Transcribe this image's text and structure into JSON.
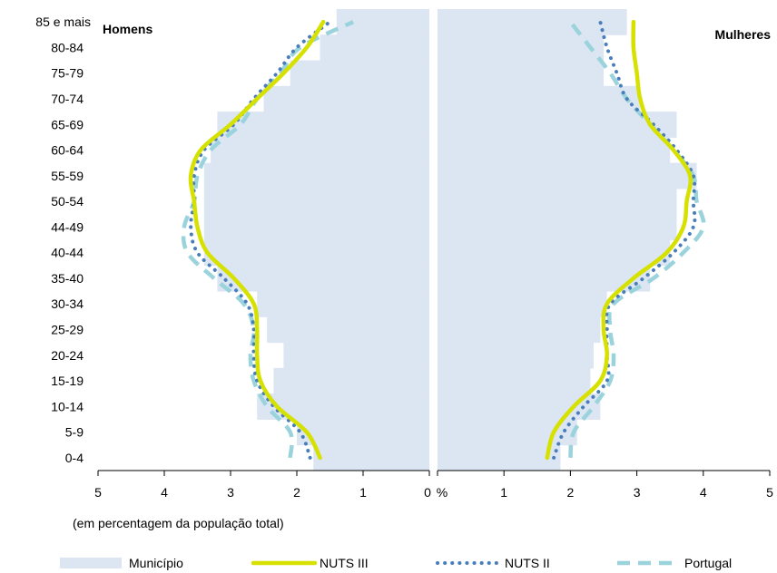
{
  "chart_data": {
    "type": "area",
    "age_groups": [
      "0-4",
      "5-9",
      "10-14",
      "15-19",
      "20-24",
      "25-29",
      "30-34",
      "35-40",
      "40-44",
      "44-49",
      "50-54",
      "55-59",
      "60-64",
      "65-69",
      "70-74",
      "75-79",
      "80-84",
      "85 e mais"
    ],
    "left_panel_label": "Homens",
    "right_panel_label": "Mulheres",
    "x_ticks_left": [
      "5",
      "4",
      "3",
      "2",
      "1",
      "0"
    ],
    "x_ticks_right": [
      "1",
      "2",
      "3",
      "4",
      "5"
    ],
    "x_unit": "%",
    "x_range": [
      0,
      5
    ],
    "note": "(em percentagem da população total)",
    "legend_position": "bottom",
    "series": [
      {
        "name": "Município",
        "style": "bar",
        "color": "#dce5f2",
        "homens": [
          1.75,
          2.0,
          2.6,
          2.35,
          2.2,
          2.45,
          2.6,
          3.2,
          3.4,
          3.4,
          3.4,
          3.4,
          3.3,
          3.2,
          2.5,
          2.1,
          1.65,
          1.4
        ],
        "mulheres": [
          1.85,
          2.1,
          2.45,
          2.3,
          2.35,
          2.45,
          2.55,
          3.2,
          3.5,
          3.6,
          3.6,
          3.9,
          3.5,
          3.6,
          3.05,
          2.5,
          2.5,
          2.85
        ]
      },
      {
        "name": "NUTS III",
        "style": "solid",
        "color": "#d6e100",
        "homens": [
          1.65,
          1.85,
          2.3,
          2.55,
          2.6,
          2.6,
          2.65,
          2.95,
          3.35,
          3.5,
          3.55,
          3.6,
          3.45,
          3.0,
          2.6,
          2.2,
          1.85,
          1.6
        ],
        "mulheres": [
          1.65,
          1.75,
          2.05,
          2.45,
          2.55,
          2.5,
          2.55,
          2.95,
          3.45,
          3.7,
          3.75,
          3.8,
          3.55,
          3.2,
          3.05,
          3.0,
          2.95,
          2.95
        ]
      },
      {
        "name": "NUTS II",
        "style": "dotted",
        "color": "#4a7ebb",
        "homens": [
          1.8,
          1.95,
          2.35,
          2.6,
          2.65,
          2.65,
          2.75,
          3.1,
          3.5,
          3.6,
          3.55,
          3.55,
          3.4,
          2.95,
          2.65,
          2.3,
          2.0,
          1.5
        ],
        "mulheres": [
          1.75,
          1.9,
          2.2,
          2.55,
          2.55,
          2.55,
          2.6,
          3.1,
          3.55,
          3.85,
          3.85,
          3.85,
          3.6,
          3.25,
          2.85,
          2.7,
          2.55,
          2.45
        ]
      },
      {
        "name": "Portugal",
        "style": "dashed",
        "color": "#9ad3dc",
        "homens": [
          2.1,
          2.1,
          2.45,
          2.65,
          2.7,
          2.65,
          2.8,
          3.25,
          3.65,
          3.7,
          3.55,
          3.5,
          3.3,
          2.85,
          2.6,
          2.25,
          1.95,
          1.15
        ],
        "mulheres": [
          2.0,
          2.05,
          2.35,
          2.6,
          2.65,
          2.6,
          2.65,
          3.25,
          3.7,
          4.0,
          3.9,
          3.85,
          3.55,
          3.2,
          2.85,
          2.6,
          2.3,
          2.0
        ]
      }
    ]
  }
}
